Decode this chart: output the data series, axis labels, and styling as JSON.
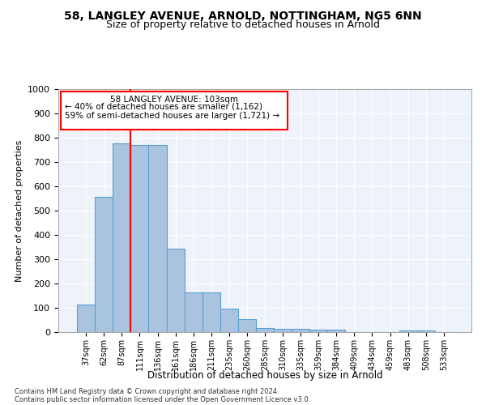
{
  "title1": "58, LANGLEY AVENUE, ARNOLD, NOTTINGHAM, NG5 6NN",
  "title2": "Size of property relative to detached houses in Arnold",
  "xlabel": "Distribution of detached houses by size in Arnold",
  "ylabel": "Number of detached properties",
  "categories": [
    "37sqm",
    "62sqm",
    "87sqm",
    "111sqm",
    "136sqm",
    "161sqm",
    "186sqm",
    "211sqm",
    "235sqm",
    "260sqm",
    "285sqm",
    "310sqm",
    "335sqm",
    "359sqm",
    "384sqm",
    "409sqm",
    "434sqm",
    "459sqm",
    "483sqm",
    "508sqm",
    "533sqm"
  ],
  "values": [
    112,
    557,
    778,
    770,
    770,
    343,
    165,
    165,
    98,
    52,
    18,
    15,
    15,
    10,
    10,
    0,
    0,
    0,
    8,
    8,
    0
  ],
  "bar_color": "#aac4e0",
  "bar_edge_color": "#5a9fd4",
  "vline_color": "red",
  "annotation_text_line1": "58 LANGLEY AVENUE: 103sqm",
  "annotation_text_line2": "← 40% of detached houses are smaller (1,162)",
  "annotation_text_line3": "59% of semi-detached houses are larger (1,721) →",
  "ylim": [
    0,
    1000
  ],
  "yticks": [
    0,
    100,
    200,
    300,
    400,
    500,
    600,
    700,
    800,
    900,
    1000
  ],
  "background_color": "#eef2fb",
  "grid_color": "white",
  "footer_line1": "Contains HM Land Registry data © Crown copyright and database right 2024.",
  "footer_line2": "Contains public sector information licensed under the Open Government Licence v3.0."
}
